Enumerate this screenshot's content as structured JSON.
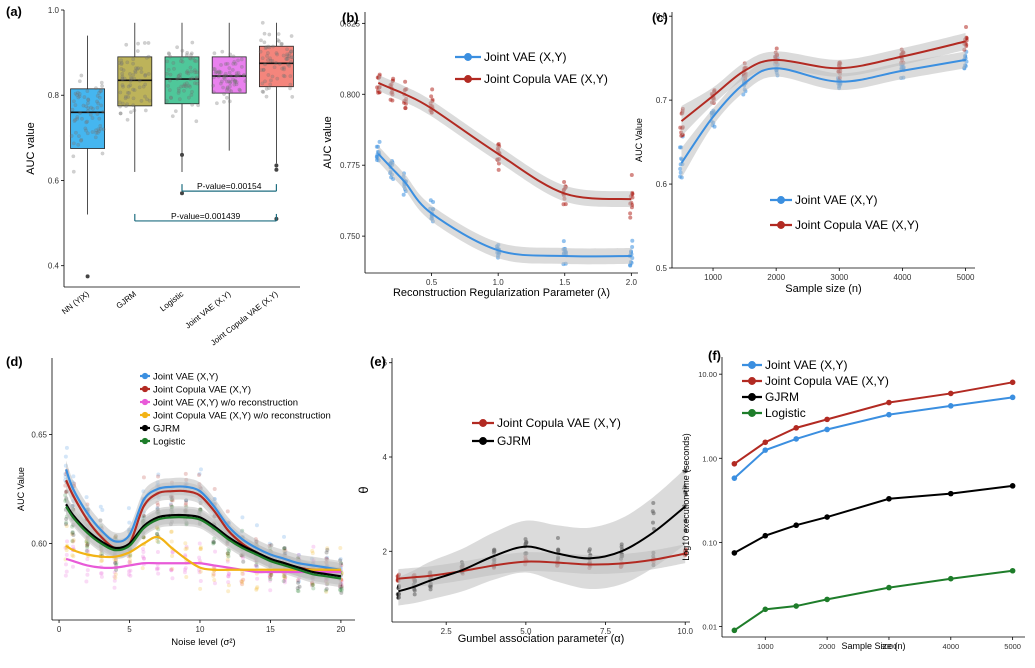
{
  "figure": {
    "panels": [
      "(a)",
      "(b)",
      "(c)",
      "(d)",
      "(e)",
      "(f)"
    ]
  },
  "colors": {
    "joint_vae": "#3b8fe0",
    "joint_copula_vae": "#b22a22",
    "joint_vae_wo": "#e85ad8",
    "joint_copula_wo": "#f2b315",
    "gjrm": "#000000",
    "logistic": "#1e7d2a",
    "box_nn": "#45b6f0",
    "box_gjrm": "#bdb35a",
    "box_logistic": "#4fc79a",
    "box_jointvae": "#e981ee",
    "box_copula": "#f4857c",
    "bracket": "#1f6e80",
    "band": "#bdbdbd"
  },
  "chart_data": [
    {
      "panel": "(a)",
      "type": "box",
      "ylabel": "AUC value",
      "ylim": [
        0.35,
        1.0
      ],
      "yticks": [
        "0.4",
        "0.6",
        "0.8",
        "1.0"
      ],
      "categories": [
        "NN (Y|X)",
        "GJRM",
        "Logistic",
        "Joint VAE (X,Y)",
        "Joint Copula VAE (X,Y)"
      ],
      "boxes": [
        {
          "q1": 0.675,
          "median": 0.76,
          "q3": 0.815,
          "lo": 0.52,
          "hi": 0.94,
          "outliers": [
            0.375
          ]
        },
        {
          "q1": 0.775,
          "median": 0.835,
          "q3": 0.89,
          "lo": 0.62,
          "hi": 0.97,
          "outliers": []
        },
        {
          "q1": 0.78,
          "median": 0.838,
          "q3": 0.89,
          "lo": 0.62,
          "hi": 0.97,
          "outliers": [
            0.66,
            0.57
          ]
        },
        {
          "q1": 0.805,
          "median": 0.845,
          "q3": 0.89,
          "lo": 0.67,
          "hi": 0.97,
          "outliers": []
        },
        {
          "q1": 0.82,
          "median": 0.875,
          "q3": 0.915,
          "lo": 0.64,
          "hi": 0.97,
          "outliers": [
            0.635,
            0.625,
            0.51
          ]
        }
      ],
      "annotations": [
        {
          "text": "P-value=0.00154",
          "from": 2,
          "to": 4,
          "y": 0.575
        },
        {
          "text": "P-value=0.001439",
          "from": 1,
          "to": 4,
          "y": 0.505
        }
      ]
    },
    {
      "panel": "(b)",
      "type": "line",
      "xlabel": "Reconstruction Regularization Parameter (λ)",
      "ylabel": "AUC value",
      "xlim": [
        0.0,
        2.05
      ],
      "ylim": [
        0.737,
        0.829
      ],
      "xticks": [
        "0.5",
        "1.0",
        "1.5",
        "2.0"
      ],
      "yticks": [
        "0.750",
        "0.775",
        "0.800",
        "0.825"
      ],
      "legend": "top-right",
      "x": [
        0.1,
        0.2,
        0.3,
        0.5,
        1.0,
        1.5,
        2.0
      ],
      "series": [
        {
          "name": "Joint VAE (X,Y)",
          "values": [
            0.779,
            0.774,
            0.769,
            0.758,
            0.745,
            0.743,
            0.743
          ]
        },
        {
          "name": "Joint Copula VAE (X,Y)",
          "values": [
            0.804,
            0.802,
            0.8,
            0.795,
            0.779,
            0.765,
            0.763
          ]
        }
      ]
    },
    {
      "panel": "(c)",
      "type": "line",
      "xlabel": "Sample size (n)",
      "ylabel": "AUC Value",
      "xlim": [
        350,
        5150
      ],
      "ylim": [
        0.5,
        0.805
      ],
      "xticks": [
        "1000",
        "2000",
        "3000",
        "4000",
        "5000"
      ],
      "yticks": [
        "0.5",
        "0.6",
        "0.7",
        "0.8"
      ],
      "legend": "bottom-left",
      "x": [
        500,
        1000,
        1500,
        2000,
        3000,
        4000,
        5000
      ],
      "series": [
        {
          "name": "Joint VAE (X,Y)",
          "values": [
            0.625,
            0.68,
            0.72,
            0.738,
            0.722,
            0.735,
            0.748
          ]
        },
        {
          "name": "Joint Copula VAE (X,Y)",
          "values": [
            0.675,
            0.705,
            0.735,
            0.748,
            0.738,
            0.752,
            0.77
          ]
        }
      ]
    },
    {
      "panel": "(d)",
      "type": "line",
      "xlabel": "Noise level (σ²)",
      "ylabel": "AUC Value",
      "xlim": [
        -0.5,
        21.0
      ],
      "ylim": [
        0.565,
        0.685
      ],
      "xticks": [
        "0",
        "5",
        "10",
        "15",
        "20"
      ],
      "yticks": [
        "0.60",
        "0.65"
      ],
      "legend": "top-right",
      "x": [
        0.5,
        1,
        2,
        3,
        4,
        5,
        6,
        7,
        8,
        9,
        10,
        11,
        12,
        13,
        14,
        15,
        16,
        17,
        18,
        19,
        20
      ],
      "series": [
        {
          "name": "Joint VAE (X,Y)",
          "values": [
            0.634,
            0.625,
            0.614,
            0.606,
            0.601,
            0.604,
            0.62,
            0.625,
            0.626,
            0.626,
            0.624,
            0.617,
            0.608,
            0.602,
            0.598,
            0.595,
            0.593,
            0.591,
            0.59,
            0.589,
            0.588
          ]
        },
        {
          "name": "Joint Copula VAE (X,Y)",
          "values": [
            0.629,
            0.622,
            0.611,
            0.603,
            0.598,
            0.6,
            0.617,
            0.623,
            0.624,
            0.624,
            0.622,
            0.615,
            0.606,
            0.6,
            0.596,
            0.593,
            0.591,
            0.589,
            0.588,
            0.588,
            0.587
          ]
        },
        {
          "name": "Joint VAE (X,Y) w/o reconstruction",
          "values": [
            0.593,
            0.592,
            0.59,
            0.589,
            0.589,
            0.59,
            0.591,
            0.591,
            0.591,
            0.591,
            0.591,
            0.59,
            0.589,
            0.588,
            0.587,
            0.587,
            0.587,
            0.587,
            0.587,
            0.587,
            0.587
          ]
        },
        {
          "name": "Joint Copula VAE (X,Y) w/o reconstruction",
          "values": [
            0.599,
            0.597,
            0.595,
            0.594,
            0.594,
            0.596,
            0.6,
            0.603,
            0.598,
            0.593,
            0.589,
            0.588,
            0.588,
            0.588,
            0.588,
            0.588,
            0.588,
            0.588,
            0.588,
            0.588,
            0.588
          ]
        },
        {
          "name": "GJRM",
          "values": [
            0.618,
            0.613,
            0.606,
            0.601,
            0.598,
            0.6,
            0.608,
            0.612,
            0.613,
            0.613,
            0.612,
            0.608,
            0.603,
            0.599,
            0.596,
            0.593,
            0.591,
            0.589,
            0.587,
            0.586,
            0.585
          ]
        },
        {
          "name": "Logistic",
          "values": [
            0.617,
            0.612,
            0.605,
            0.6,
            0.597,
            0.599,
            0.607,
            0.611,
            0.612,
            0.612,
            0.611,
            0.607,
            0.602,
            0.598,
            0.595,
            0.592,
            0.59,
            0.588,
            0.586,
            0.585,
            0.584
          ]
        }
      ]
    },
    {
      "panel": "(e)",
      "type": "line",
      "xlabel": "Gumbel association parameter (α)",
      "ylabel": "θ",
      "xlim": [
        0.8,
        10.15
      ],
      "ylim": [
        0.5,
        6.1
      ],
      "xticks": [
        "2.5",
        "5.0",
        "7.5",
        "10.0"
      ],
      "yticks": [
        "2",
        "4",
        "6"
      ],
      "legend": "top-left",
      "x": [
        1,
        1.5,
        2,
        3,
        4,
        5,
        6,
        7,
        8,
        9,
        10
      ],
      "series": [
        {
          "name": "Joint Copula VAE (X,Y)",
          "values": [
            1.42,
            1.45,
            1.48,
            1.58,
            1.7,
            1.78,
            1.76,
            1.72,
            1.74,
            1.82,
            1.95
          ]
        },
        {
          "name": "GJRM",
          "values": [
            1.15,
            1.25,
            1.38,
            1.6,
            1.9,
            2.1,
            1.95,
            1.85,
            2.0,
            2.4,
            2.95
          ]
        }
      ]
    },
    {
      "panel": "(f)",
      "type": "line",
      "xlabel": "Sample Size (n)",
      "ylabel": "Log10 execution time (seconds)",
      "xlim": [
        300,
        5200
      ],
      "ylim": [
        0.0075,
        16
      ],
      "yscale": "log",
      "xticks": [
        "1000",
        "2000",
        "3000",
        "4000",
        "5000"
      ],
      "yticks": [
        "0.01",
        "0.10",
        "1.00",
        "10.00"
      ],
      "legend": "top-left",
      "x": [
        500,
        1000,
        1500,
        2000,
        3000,
        4000,
        5000
      ],
      "series": [
        {
          "name": "Joint VAE (X,Y)",
          "values": [
            0.58,
            1.25,
            1.7,
            2.2,
            3.3,
            4.2,
            5.3
          ]
        },
        {
          "name": "Joint Copula VAE (X,Y)",
          "values": [
            0.86,
            1.55,
            2.3,
            2.9,
            4.6,
            5.9,
            8.0
          ]
        },
        {
          "name": "GJRM",
          "values": [
            0.075,
            0.12,
            0.16,
            0.2,
            0.33,
            0.38,
            0.47
          ]
        },
        {
          "name": "Logistic",
          "values": [
            0.009,
            0.016,
            0.0175,
            0.021,
            0.029,
            0.037,
            0.046
          ]
        }
      ]
    }
  ]
}
